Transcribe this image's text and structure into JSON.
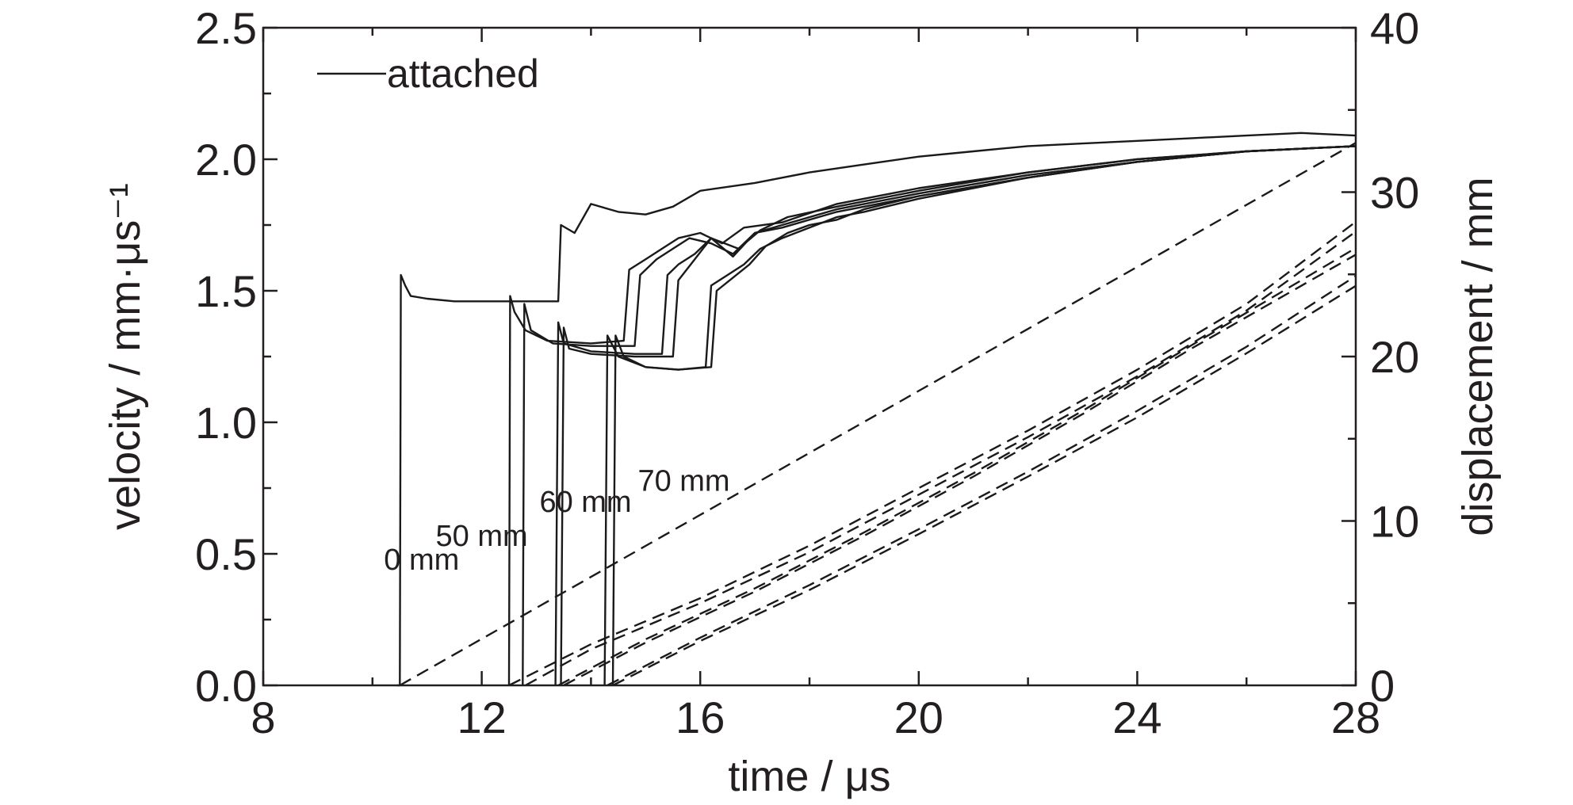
{
  "chart_data": {
    "type": "line",
    "xlabel": "time / μs",
    "ylabel_left": "velocity / mm·μs⁻¹",
    "ylabel_right": "displacement / mm",
    "xlim": [
      8,
      28
    ],
    "ylim_left": [
      0,
      2.5
    ],
    "ylim_right": [
      0,
      40
    ],
    "x_ticks": [
      8,
      12,
      16,
      20,
      24,
      28
    ],
    "y_ticks_left": [
      "0.0",
      "0.5",
      "1.0",
      "1.5",
      "2.0",
      "2.5"
    ],
    "y_ticks_right": [
      0,
      10,
      20,
      30,
      40
    ],
    "legend": {
      "label": "attached",
      "placement": "top-left"
    },
    "annotations": [
      {
        "text": "0 mm",
        "x": 10.9,
        "y": 0.44
      },
      {
        "text": "50 mm",
        "x": 12.0,
        "y": 0.53
      },
      {
        "text": "60 mm",
        "x": 13.9,
        "y": 0.66
      },
      {
        "text": "70 mm",
        "x": 15.7,
        "y": 0.74
      }
    ],
    "series": [
      {
        "axis": "left",
        "style": "solid",
        "points": [
          [
            10.45,
            0
          ],
          [
            10.5,
            0
          ],
          [
            10.52,
            1.56
          ],
          [
            10.6,
            1.52
          ],
          [
            10.7,
            1.48
          ],
          [
            11,
            1.47
          ],
          [
            11.5,
            1.46
          ],
          [
            12.5,
            1.46
          ],
          [
            13.4,
            1.46
          ],
          [
            13.45,
            1.75
          ],
          [
            13.7,
            1.72
          ],
          [
            14,
            1.83
          ],
          [
            14.5,
            1.8
          ],
          [
            15,
            1.79
          ],
          [
            15.5,
            1.82
          ],
          [
            16,
            1.88
          ],
          [
            17,
            1.91
          ],
          [
            18,
            1.95
          ],
          [
            19,
            1.98
          ],
          [
            20,
            2.01
          ],
          [
            21,
            2.03
          ],
          [
            22,
            2.05
          ],
          [
            23,
            2.06
          ],
          [
            24,
            2.07
          ],
          [
            25,
            2.08
          ],
          [
            26,
            2.09
          ],
          [
            27,
            2.1
          ],
          [
            28,
            2.09
          ]
        ]
      },
      {
        "axis": "left",
        "style": "solid",
        "points": [
          [
            12.5,
            0
          ],
          [
            12.52,
            1.48
          ],
          [
            12.6,
            1.42
          ],
          [
            12.8,
            1.35
          ],
          [
            13.2,
            1.31
          ],
          [
            14,
            1.3
          ],
          [
            14.6,
            1.31
          ],
          [
            14.7,
            1.58
          ],
          [
            15,
            1.62
          ],
          [
            15.3,
            1.66
          ],
          [
            15.6,
            1.7
          ],
          [
            16,
            1.72
          ],
          [
            16.4,
            1.68
          ],
          [
            16.8,
            1.74
          ],
          [
            17.5,
            1.76
          ],
          [
            18.5,
            1.83
          ],
          [
            20,
            1.89
          ],
          [
            22,
            1.95
          ],
          [
            24,
            2.0
          ],
          [
            26,
            2.03
          ],
          [
            28,
            2.05
          ]
        ]
      },
      {
        "axis": "left",
        "style": "solid",
        "points": [
          [
            12.75,
            0
          ],
          [
            12.78,
            1.45
          ],
          [
            12.9,
            1.35
          ],
          [
            13.3,
            1.3
          ],
          [
            14,
            1.29
          ],
          [
            14.8,
            1.29
          ],
          [
            14.9,
            1.56
          ],
          [
            15.2,
            1.62
          ],
          [
            15.5,
            1.66
          ],
          [
            15.8,
            1.7
          ],
          [
            16.2,
            1.68
          ],
          [
            16.6,
            1.64
          ],
          [
            17,
            1.72
          ],
          [
            17.5,
            1.74
          ],
          [
            18.5,
            1.8
          ],
          [
            20,
            1.86
          ],
          [
            22,
            1.93
          ],
          [
            24,
            1.99
          ],
          [
            26,
            2.03
          ],
          [
            28,
            2.05
          ]
        ]
      },
      {
        "axis": "left",
        "style": "solid",
        "points": [
          [
            13.35,
            0
          ],
          [
            13.4,
            1.38
          ],
          [
            13.5,
            1.3
          ],
          [
            14,
            1.27
          ],
          [
            14.8,
            1.26
          ],
          [
            15.3,
            1.26
          ],
          [
            15.4,
            1.56
          ],
          [
            15.6,
            1.6
          ],
          [
            15.9,
            1.64
          ],
          [
            16.2,
            1.7
          ],
          [
            16.7,
            1.66
          ],
          [
            17.1,
            1.73
          ],
          [
            17.6,
            1.78
          ],
          [
            18.5,
            1.82
          ],
          [
            20,
            1.88
          ],
          [
            22,
            1.95
          ],
          [
            24,
            2.0
          ],
          [
            26,
            2.03
          ],
          [
            28,
            2.05
          ]
        ]
      },
      {
        "axis": "left",
        "style": "solid",
        "points": [
          [
            13.45,
            0
          ],
          [
            13.5,
            1.36
          ],
          [
            13.6,
            1.28
          ],
          [
            14,
            1.26
          ],
          [
            14.8,
            1.25
          ],
          [
            15.5,
            1.25
          ],
          [
            15.6,
            1.54
          ],
          [
            15.9,
            1.62
          ],
          [
            16.2,
            1.7
          ],
          [
            16.6,
            1.63
          ],
          [
            17,
            1.72
          ],
          [
            17.5,
            1.75
          ],
          [
            18.5,
            1.81
          ],
          [
            20,
            1.87
          ],
          [
            22,
            1.94
          ],
          [
            24,
            1.99
          ],
          [
            26,
            2.03
          ],
          [
            28,
            2.05
          ]
        ]
      },
      {
        "axis": "left",
        "style": "solid",
        "points": [
          [
            14.25,
            0
          ],
          [
            14.3,
            1.33
          ],
          [
            14.5,
            1.25
          ],
          [
            15,
            1.21
          ],
          [
            15.6,
            1.2
          ],
          [
            16.1,
            1.21
          ],
          [
            16.2,
            1.52
          ],
          [
            16.5,
            1.56
          ],
          [
            16.8,
            1.6
          ],
          [
            17.1,
            1.66
          ],
          [
            17.5,
            1.7
          ],
          [
            18,
            1.74
          ],
          [
            18.5,
            1.78
          ],
          [
            19,
            1.8
          ],
          [
            20,
            1.85
          ],
          [
            22,
            1.93
          ],
          [
            24,
            1.99
          ],
          [
            26,
            2.03
          ],
          [
            28,
            2.05
          ]
        ]
      },
      {
        "axis": "left",
        "style": "solid",
        "points": [
          [
            14.4,
            0
          ],
          [
            14.45,
            1.33
          ],
          [
            14.6,
            1.25
          ],
          [
            15,
            1.21
          ],
          [
            15.6,
            1.2
          ],
          [
            16.2,
            1.21
          ],
          [
            16.3,
            1.5
          ],
          [
            16.6,
            1.55
          ],
          [
            16.9,
            1.6
          ],
          [
            17.2,
            1.67
          ],
          [
            17.6,
            1.72
          ],
          [
            18,
            1.75
          ],
          [
            18.5,
            1.77
          ],
          [
            19,
            1.81
          ],
          [
            20,
            1.86
          ],
          [
            22,
            1.93
          ],
          [
            24,
            1.99
          ],
          [
            26,
            2.03
          ],
          [
            28,
            2.05
          ]
        ]
      },
      {
        "axis": "right",
        "style": "dashed",
        "points": [
          [
            10.5,
            0
          ],
          [
            28,
            33
          ]
        ]
      },
      {
        "axis": "right",
        "style": "dashed",
        "points": [
          [
            12.5,
            0
          ],
          [
            14,
            2.5
          ],
          [
            16,
            5.3
          ],
          [
            18,
            8.5
          ],
          [
            20,
            12
          ],
          [
            22,
            15.5
          ],
          [
            24,
            19.2
          ],
          [
            26,
            23.2
          ],
          [
            28,
            28.2
          ]
        ]
      },
      {
        "axis": "right",
        "style": "dashed",
        "points": [
          [
            12.8,
            0
          ],
          [
            14,
            2.2
          ],
          [
            16,
            5
          ],
          [
            18,
            8.1
          ],
          [
            20,
            11.6
          ],
          [
            22,
            15.1
          ],
          [
            24,
            18.8
          ],
          [
            26,
            22.8
          ],
          [
            28,
            27.6
          ]
        ]
      },
      {
        "axis": "right",
        "style": "dashed",
        "points": [
          [
            13.4,
            0
          ],
          [
            15,
            2.8
          ],
          [
            17,
            5.9
          ],
          [
            19,
            9.3
          ],
          [
            21,
            12.9
          ],
          [
            23,
            16.7
          ],
          [
            25,
            20.7
          ],
          [
            28,
            26.6
          ]
        ]
      },
      {
        "axis": "right",
        "style": "dashed",
        "points": [
          [
            13.5,
            0
          ],
          [
            15,
            2.6
          ],
          [
            17,
            5.7
          ],
          [
            19,
            9.1
          ],
          [
            21,
            12.7
          ],
          [
            23,
            16.5
          ],
          [
            25,
            20.5
          ],
          [
            28,
            26.2
          ]
        ]
      },
      {
        "axis": "right",
        "style": "dashed",
        "points": [
          [
            14.3,
            0
          ],
          [
            16,
            2.9
          ],
          [
            18,
            6.1
          ],
          [
            20,
            9.5
          ],
          [
            22,
            13
          ],
          [
            24,
            16.7
          ],
          [
            26,
            20.6
          ],
          [
            28,
            24.9
          ]
        ]
      },
      {
        "axis": "right",
        "style": "dashed",
        "points": [
          [
            14.4,
            0
          ],
          [
            16,
            2.7
          ],
          [
            18,
            5.8
          ],
          [
            20,
            9.2
          ],
          [
            22,
            12.7
          ],
          [
            24,
            16.3
          ],
          [
            26,
            20.2
          ],
          [
            28,
            24.3
          ]
        ]
      }
    ]
  }
}
